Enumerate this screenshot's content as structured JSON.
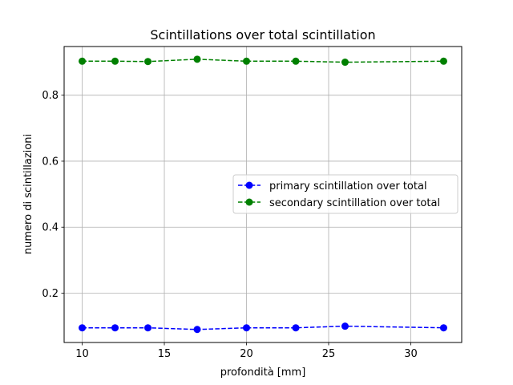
{
  "chart_data": {
    "type": "line",
    "title": "Scintillations over total scintillation",
    "xlabel": "profondità [mm]",
    "ylabel": "numero di scintillazioni",
    "xlim": [
      8.9,
      33.1
    ],
    "ylim": [
      0.0505,
      0.9475
    ],
    "x_ticks": [
      10,
      15,
      20,
      25,
      30
    ],
    "x_tick_labels": [
      "10",
      "15",
      "20",
      "25",
      "30"
    ],
    "y_ticks": [
      0.2,
      0.4,
      0.6,
      0.8
    ],
    "y_tick_labels": [
      "0.2",
      "0.4",
      "0.6",
      "0.8"
    ],
    "grid": true,
    "legend_position": "center-right",
    "x": [
      10,
      12,
      14,
      17,
      20,
      23,
      26,
      32
    ],
    "series": [
      {
        "name": "primary scintillation over total",
        "color": "#0000ff",
        "line_style": "dashed",
        "marker": "circle",
        "values": [
          0.095,
          0.095,
          0.095,
          0.09,
          0.095,
          0.095,
          0.1,
          0.095
        ]
      },
      {
        "name": "secondary scintillation over total",
        "color": "#008000",
        "line_style": "dashed",
        "marker": "circle",
        "values": [
          0.903,
          0.903,
          0.902,
          0.909,
          0.903,
          0.903,
          0.9,
          0.903
        ]
      }
    ]
  }
}
